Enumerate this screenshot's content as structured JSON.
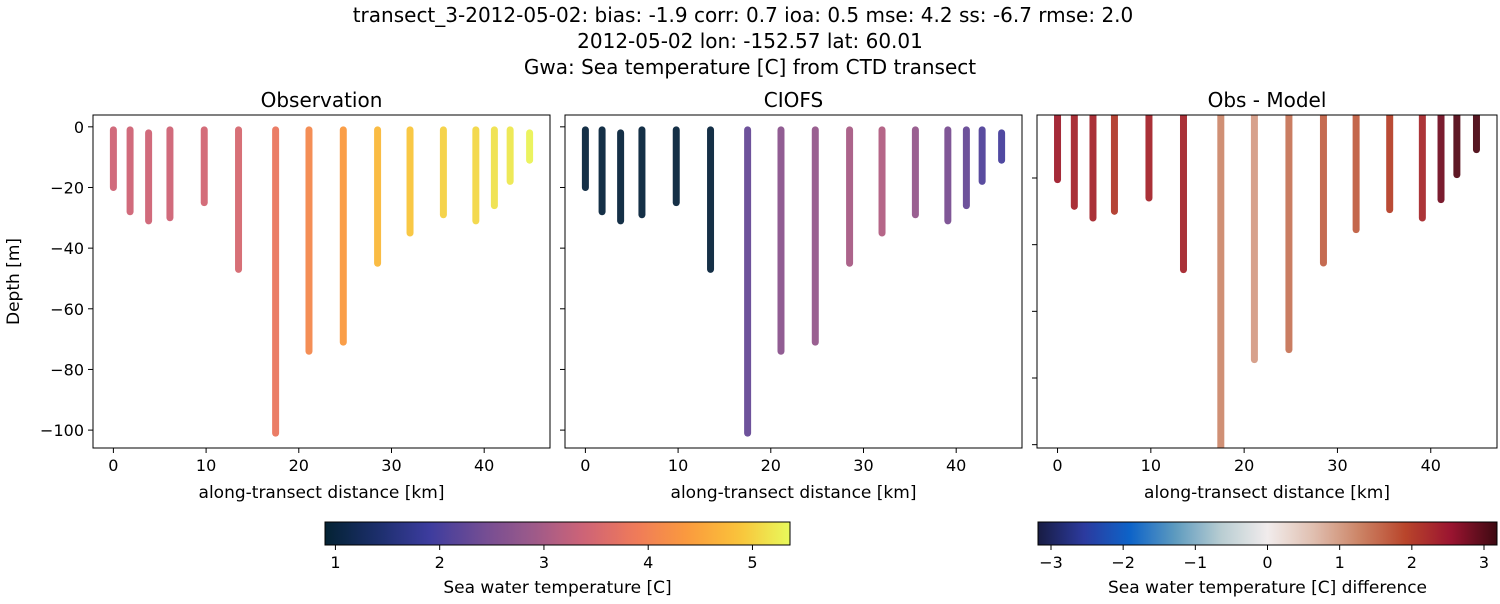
{
  "title_lines": [
    "transect_3-2012-05-02: bias: -1.9  corr: 0.7  ioa: 0.5  mse: 4.2  ss: -6.7  rmse: 2.0",
    "2012-05-02 lon: -152.57 lat: 60.01",
    "Gwa: Sea temperature [C] from CTD transect"
  ],
  "chart_data": [
    {
      "type": "scatter",
      "title": "Observation",
      "xlabel": "along-transect distance [km]",
      "ylabel": "Depth [m]",
      "xlim": [
        -2.2,
        47.1
      ],
      "ylim": [
        -105.9,
        3.9
      ],
      "xticks": [
        0,
        10,
        20,
        30,
        40
      ],
      "yticks": [
        0,
        -20,
        -40,
        -60,
        -80,
        -100
      ],
      "show_ytick_labels": true,
      "colormap": "thermal",
      "clim": [
        0.9,
        5.36
      ],
      "stations": [
        {
          "x": 0.0,
          "top": -1,
          "bottom": -20,
          "value": 3.4
        },
        {
          "x": 1.8,
          "top": -1,
          "bottom": -28,
          "value": 3.4
        },
        {
          "x": 3.8,
          "top": -2,
          "bottom": -31,
          "value": 3.4
        },
        {
          "x": 6.1,
          "top": -1,
          "bottom": -30,
          "value": 3.4
        },
        {
          "x": 9.8,
          "top": -1,
          "bottom": -25,
          "value": 3.45
        },
        {
          "x": 13.5,
          "top": -1,
          "bottom": -47,
          "value": 3.5
        },
        {
          "x": 17.5,
          "top": -1,
          "bottom": -101,
          "value": 3.8
        },
        {
          "x": 21.1,
          "top": -1,
          "bottom": -74,
          "value": 4.1
        },
        {
          "x": 24.8,
          "top": -1,
          "bottom": -71,
          "value": 4.35
        },
        {
          "x": 28.5,
          "top": -1,
          "bottom": -45,
          "value": 4.75
        },
        {
          "x": 32.0,
          "top": -1,
          "bottom": -35,
          "value": 4.9
        },
        {
          "x": 35.6,
          "top": -1,
          "bottom": -29,
          "value": 5.0
        },
        {
          "x": 39.1,
          "top": -1,
          "bottom": -31,
          "value": 5.05
        },
        {
          "x": 41.1,
          "top": -1,
          "bottom": -26,
          "value": 5.15
        },
        {
          "x": 42.8,
          "top": -1,
          "bottom": -18,
          "value": 5.2
        },
        {
          "x": 44.9,
          "top": -2,
          "bottom": -11,
          "value": 5.3
        }
      ]
    },
    {
      "type": "scatter",
      "title": "CIOFS",
      "xlabel": "along-transect distance [km]",
      "xlim": [
        -2.2,
        47.1
      ],
      "ylim": [
        -105.9,
        3.9
      ],
      "xticks": [
        0,
        10,
        20,
        30,
        40
      ],
      "yticks": [
        0,
        -20,
        -40,
        -60,
        -80,
        -100
      ],
      "show_ytick_labels": false,
      "colormap": "thermal",
      "clim": [
        0.9,
        5.36
      ],
      "stations": [
        {
          "x": 0.0,
          "top": -1,
          "bottom": -20,
          "value": 1.0
        },
        {
          "x": 1.8,
          "top": -1,
          "bottom": -28,
          "value": 1.0
        },
        {
          "x": 3.8,
          "top": -2,
          "bottom": -31,
          "value": 1.0
        },
        {
          "x": 6.1,
          "top": -1,
          "bottom": -29,
          "value": 1.0
        },
        {
          "x": 9.8,
          "top": -1,
          "bottom": -25,
          "value": 1.0
        },
        {
          "x": 13.5,
          "top": -1,
          "bottom": -47,
          "value": 1.0
        },
        {
          "x": 17.5,
          "top": -1,
          "bottom": -101,
          "value": 2.3
        },
        {
          "x": 21.1,
          "top": -1,
          "bottom": -74,
          "value": 2.7
        },
        {
          "x": 24.8,
          "top": -1,
          "bottom": -71,
          "value": 2.8
        },
        {
          "x": 28.5,
          "top": -1,
          "bottom": -45,
          "value": 3.0
        },
        {
          "x": 32.0,
          "top": -1,
          "bottom": -35,
          "value": 3.1
        },
        {
          "x": 35.6,
          "top": -1,
          "bottom": -29,
          "value": 2.8
        },
        {
          "x": 39.1,
          "top": -1,
          "bottom": -31,
          "value": 2.5
        },
        {
          "x": 41.1,
          "top": -1,
          "bottom": -26,
          "value": 2.3
        },
        {
          "x": 42.8,
          "top": -1,
          "bottom": -18,
          "value": 2.1
        },
        {
          "x": 44.9,
          "top": -2,
          "bottom": -11,
          "value": 2.0
        }
      ]
    },
    {
      "type": "scatter",
      "title": "Obs - Model",
      "xlabel": "along-transect distance [km]",
      "xlim": [
        -2.2,
        47.1
      ],
      "ylim": [
        -101,
        -1.1
      ],
      "xticks": [
        0,
        10,
        20,
        30,
        40
      ],
      "yticks": [
        -20,
        -40,
        -60,
        -80,
        -100
      ],
      "show_ytick_labels": false,
      "colormap": "balance",
      "clim": [
        -3.18,
        3.18
      ],
      "stations": [
        {
          "x": 0.0,
          "top": 0,
          "bottom": -20.5,
          "value": 2.4
        },
        {
          "x": 1.8,
          "top": 0,
          "bottom": -28.5,
          "value": 2.3
        },
        {
          "x": 3.8,
          "top": 0,
          "bottom": -32,
          "value": 2.3
        },
        {
          "x": 6.1,
          "top": 0,
          "bottom": -30,
          "value": 2.05
        },
        {
          "x": 9.8,
          "top": 0,
          "bottom": -26,
          "value": 2.3
        },
        {
          "x": 13.5,
          "top": 0,
          "bottom": -47.5,
          "value": 2.3
        },
        {
          "x": 17.5,
          "top": 0,
          "bottom": -105,
          "value": 1.2
        },
        {
          "x": 21.1,
          "top": 0,
          "bottom": -74.5,
          "value": 1.0
        },
        {
          "x": 24.8,
          "top": 0,
          "bottom": -71.5,
          "value": 1.4
        },
        {
          "x": 28.5,
          "top": 0,
          "bottom": -45.5,
          "value": 1.6
        },
        {
          "x": 32.0,
          "top": 0,
          "bottom": -35.5,
          "value": 1.65
        },
        {
          "x": 35.6,
          "top": 0,
          "bottom": -29.5,
          "value": 1.95
        },
        {
          "x": 39.1,
          "top": 0,
          "bottom": -32,
          "value": 2.25
        },
        {
          "x": 41.1,
          "top": 0,
          "bottom": -26.5,
          "value": 2.8
        },
        {
          "x": 42.8,
          "top": 0,
          "bottom": -19,
          "value": 3.0
        },
        {
          "x": 44.9,
          "top": 0,
          "bottom": -11.5,
          "value": 3.05
        }
      ]
    }
  ],
  "colorbars": [
    {
      "label": "Sea water temperature [C]",
      "colormap": "thermal",
      "range": [
        0.9,
        5.36
      ],
      "ticks": [
        1,
        2,
        3,
        4,
        5
      ]
    },
    {
      "label": "Sea water temperature [C] difference",
      "colormap": "balance",
      "range": [
        -3.18,
        3.18
      ],
      "ticks": [
        -3,
        -2,
        -1,
        0,
        1,
        2,
        3
      ]
    }
  ],
  "colormaps": {
    "thermal": [
      "#042333",
      "#1b2e6b",
      "#3c3c9e",
      "#704c94",
      "#9c5a8a",
      "#cd6377",
      "#ef7a5a",
      "#fa9a3e",
      "#fac23a",
      "#e8fa5b"
    ],
    "balance": [
      "#181c43",
      "#2c3a9e",
      "#0d63c8",
      "#5e9bbf",
      "#b9cdd2",
      "#f1ecec",
      "#e0bfb0",
      "#cc8466",
      "#b9452b",
      "#9a1430",
      "#3c0911"
    ]
  }
}
